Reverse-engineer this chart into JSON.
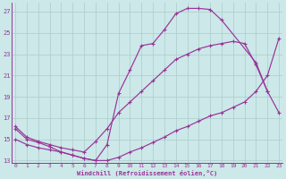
{
  "xlabel": "Windchill (Refroidissement éolien,°C)",
  "bg_color": "#cce8e8",
  "grid_color": "#aacccc",
  "line_color": "#993399",
  "xlim": [
    -0.3,
    23.3
  ],
  "ylim": [
    12.8,
    27.8
  ],
  "yticks": [
    13,
    15,
    17,
    19,
    21,
    23,
    25,
    27
  ],
  "xticks": [
    0,
    1,
    2,
    3,
    4,
    5,
    6,
    7,
    8,
    9,
    10,
    11,
    12,
    13,
    14,
    15,
    16,
    17,
    18,
    19,
    20,
    21,
    22,
    23
  ],
  "curve1_x": [
    0,
    1,
    2,
    3,
    4,
    5,
    6,
    7,
    8,
    9,
    10,
    11,
    12,
    13,
    14,
    15,
    16,
    17,
    18,
    21,
    22
  ],
  "curve1_y": [
    16.0,
    15.0,
    14.7,
    14.3,
    13.8,
    13.5,
    13.2,
    13.0,
    14.5,
    19.3,
    21.5,
    23.8,
    24.0,
    25.3,
    26.8,
    27.3,
    27.3,
    27.2,
    26.2,
    22.2,
    19.5
  ],
  "curve2_x": [
    0,
    1,
    2,
    3,
    4,
    5,
    6,
    7,
    8,
    9,
    10,
    11,
    12,
    13,
    14,
    15,
    16,
    17,
    18,
    19,
    20,
    21,
    22,
    23
  ],
  "curve2_y": [
    15.0,
    14.5,
    14.2,
    14.0,
    13.8,
    13.5,
    13.2,
    13.0,
    13.0,
    13.3,
    13.8,
    14.2,
    14.7,
    15.2,
    15.8,
    16.2,
    16.7,
    17.2,
    17.5,
    18.0,
    18.5,
    19.5,
    21.0,
    24.5
  ],
  "curve3_x": [
    0,
    1,
    2,
    3,
    4,
    5,
    6,
    7,
    8,
    9,
    10,
    11,
    12,
    13,
    14,
    15,
    16,
    17,
    18,
    19,
    20,
    21,
    22,
    23
  ],
  "curve3_y": [
    16.2,
    15.2,
    14.8,
    14.5,
    14.2,
    14.0,
    13.8,
    14.8,
    16.0,
    17.5,
    18.5,
    19.5,
    20.5,
    21.5,
    22.5,
    23.0,
    23.5,
    23.8,
    24.0,
    24.2,
    24.0,
    22.0,
    19.5,
    17.5
  ]
}
